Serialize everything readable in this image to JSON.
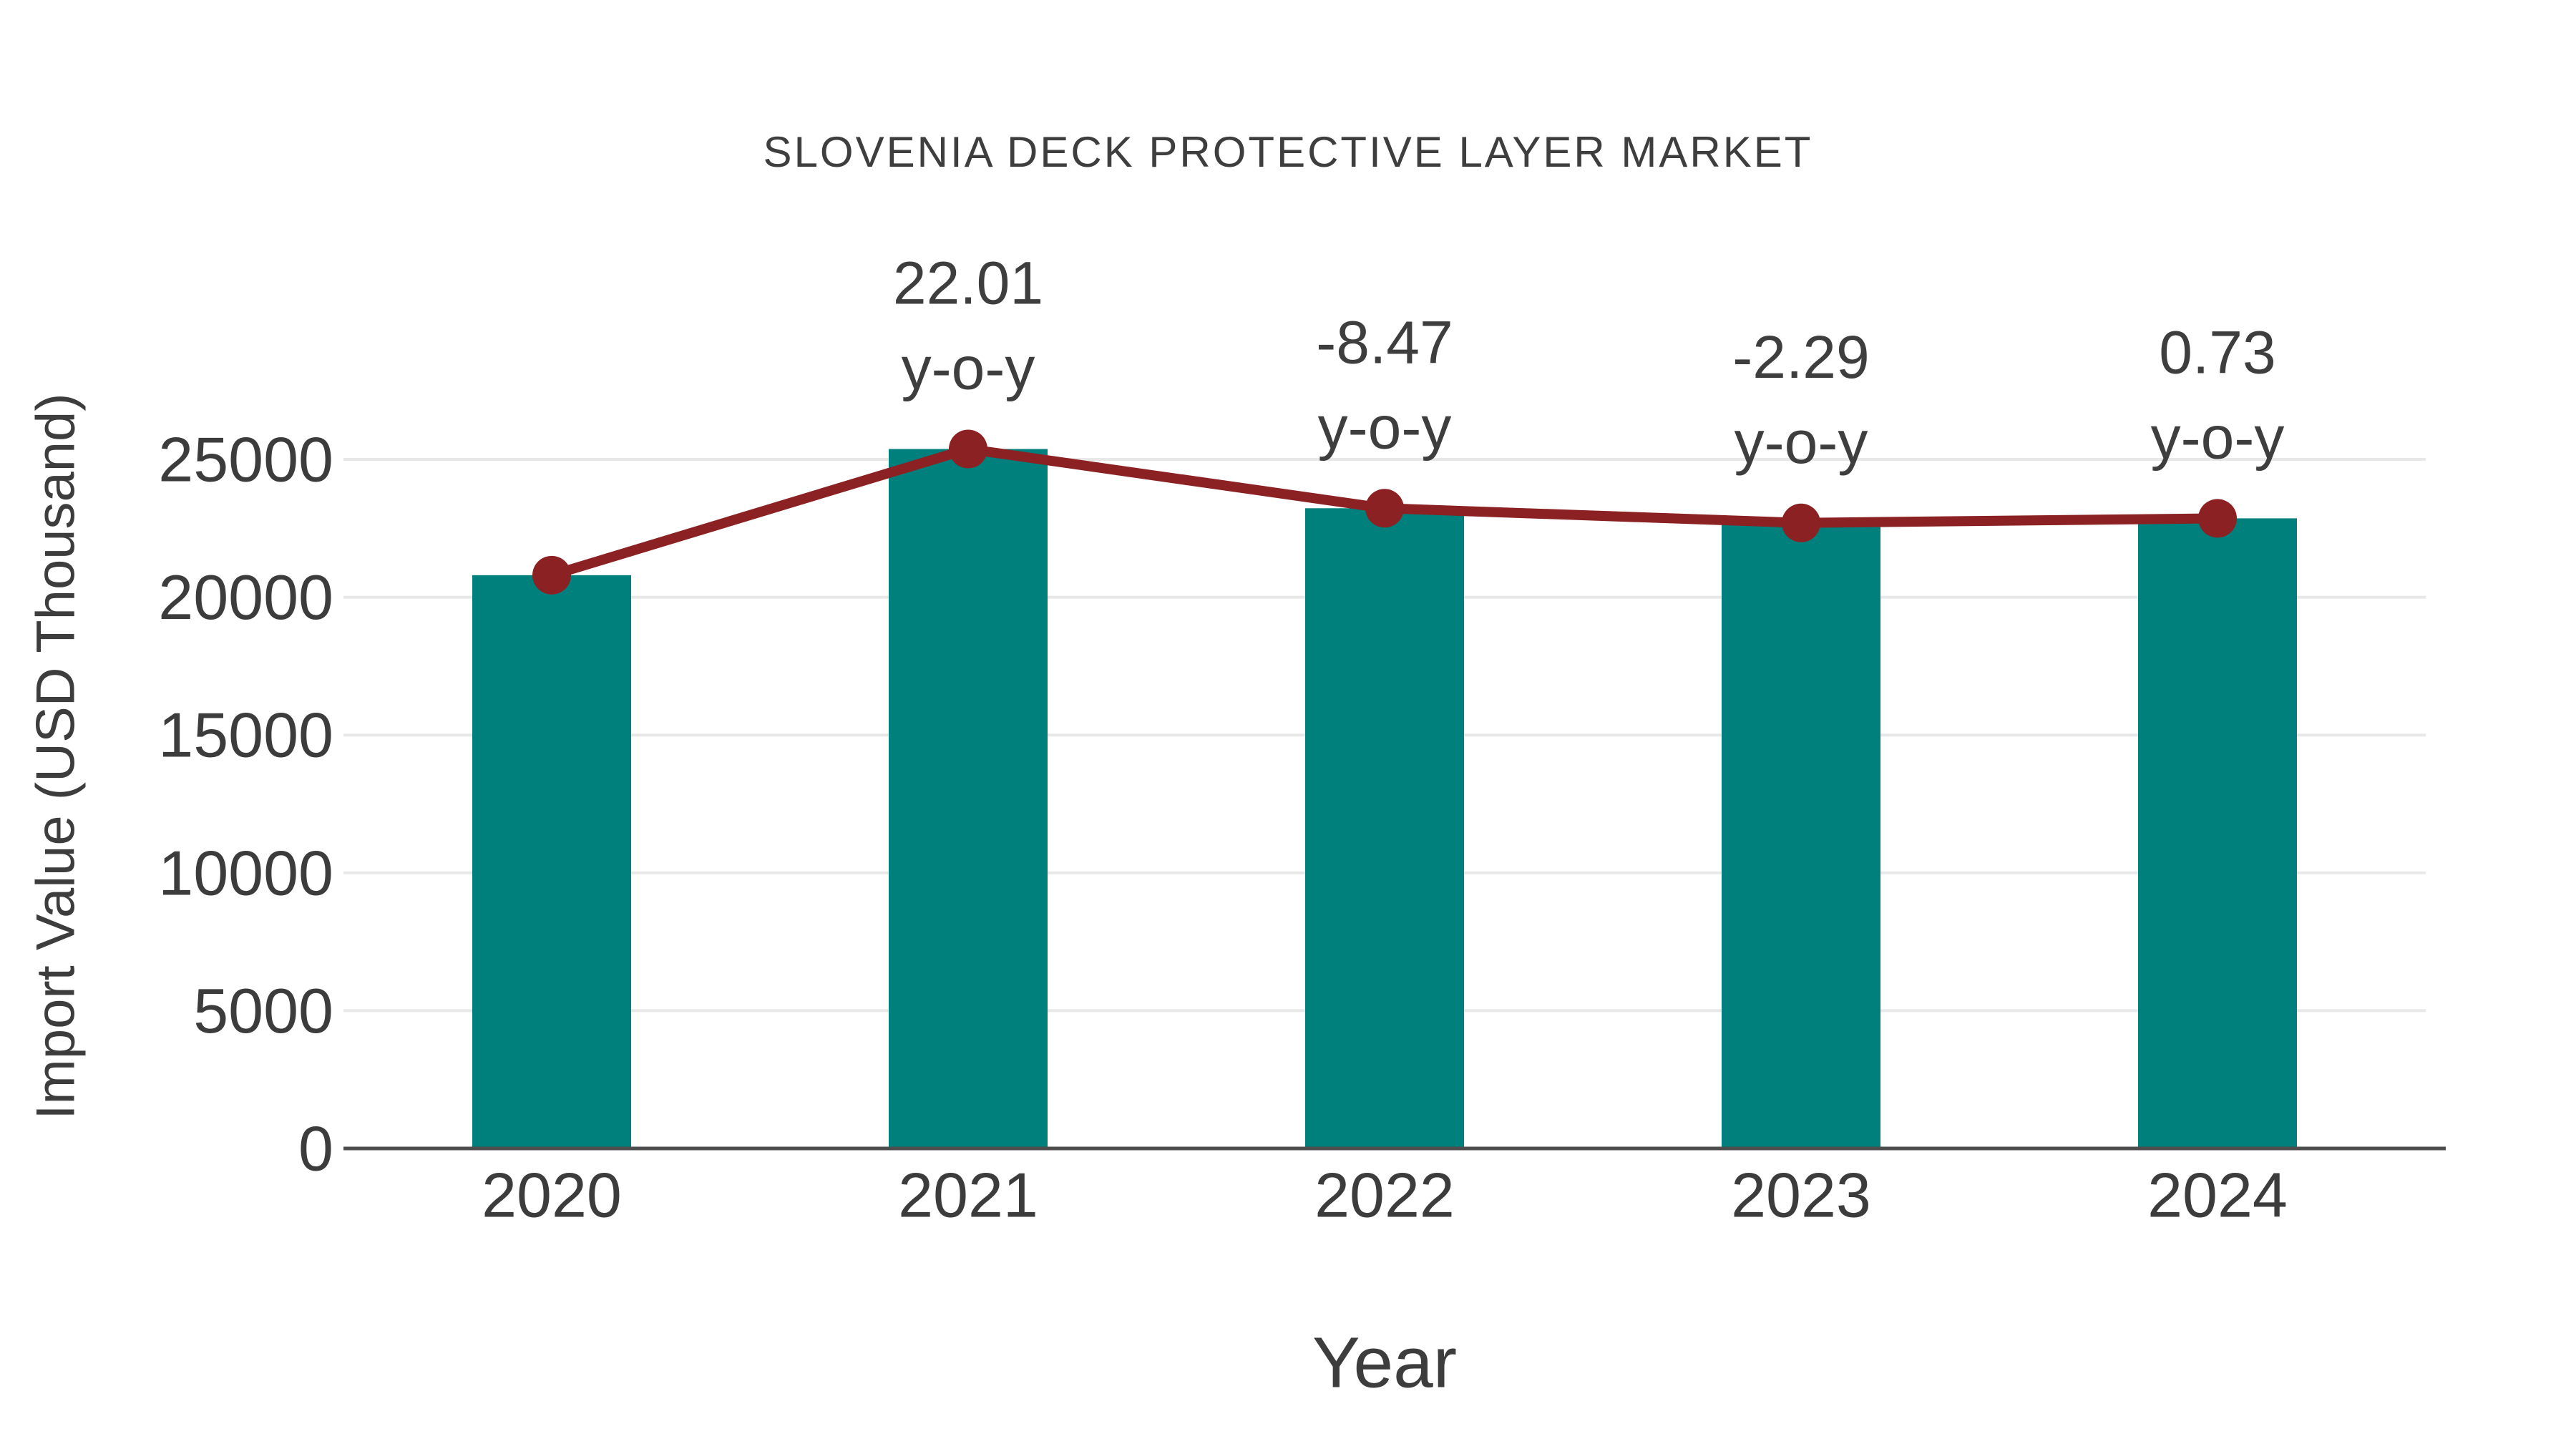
{
  "chart_data": {
    "type": "bar",
    "title": "SLOVENIA DECK PROTECTIVE LAYER MARKET",
    "xlabel": "Year",
    "ylabel": "Import Value (USD Thousand)",
    "categories": [
      "2020",
      "2021",
      "2022",
      "2023",
      "2024"
    ],
    "series": [
      {
        "name": "import-value-bars",
        "type": "bar",
        "values": [
          20800,
          25378,
          23228,
          22696,
          22862
        ]
      },
      {
        "name": "import-value-trend-line",
        "type": "line",
        "values": [
          20800,
          25378,
          23228,
          22696,
          22862
        ]
      }
    ],
    "annotations": [
      {
        "category": "2021",
        "line1": "22.01",
        "line2": "y-o-y"
      },
      {
        "category": "2022",
        "line1": "-8.47",
        "line2": "y-o-y"
      },
      {
        "category": "2023",
        "line1": "-2.29",
        "line2": "y-o-y"
      },
      {
        "category": "2024",
        "line1": "0.73",
        "line2": "y-o-y"
      }
    ],
    "yticks": [
      0,
      5000,
      10000,
      15000,
      20000,
      25000
    ],
    "ytick_labels": [
      "0",
      "5000",
      "10000",
      "15000",
      "20000",
      "25000"
    ],
    "ylim": [
      0,
      27000
    ],
    "grid": "horizontal",
    "legend_position": "none",
    "colors": {
      "bar": "#00807d",
      "line": "#8b2123",
      "marker": "#8b2123",
      "grid": "#e8e8e8",
      "axis": "#4d4d4d",
      "tick_text": "#3c3c3c",
      "annotation_text": "#3e3e3e",
      "title_text": "#3e3e3e",
      "background": "#ffffff"
    }
  }
}
